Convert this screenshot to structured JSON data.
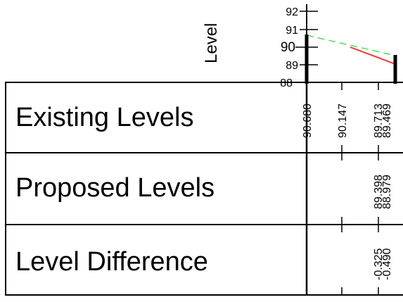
{
  "axis_title": "Level",
  "y_ticks": [
    "92",
    "91",
    "90",
    "89",
    "88"
  ],
  "rows": {
    "existing": "Existing Levels",
    "proposed": "Proposed Levels",
    "difference": "Level Difference"
  },
  "values": {
    "existing": [
      "90.680",
      "90.147",
      "89.713",
      "89.469"
    ],
    "proposed": [
      "89.398",
      "88.979"
    ],
    "difference": [
      "-0.325",
      "-0.490"
    ]
  },
  "colors": {
    "existing_line": "#55dd55",
    "proposed_line": "#ff2a2a",
    "lines": "#000000"
  },
  "chart_data": {
    "type": "line",
    "ylabel": "Level",
    "ylim": [
      88,
      92
    ],
    "series": [
      {
        "name": "",
        "points": [
          [
            0,
            90.68
          ],
          [
            1,
            89.469
          ]
        ]
      },
      {
        "name": "",
        "points": [
          [
            0.5,
            90.0
          ],
          [
            1,
            88.979
          ]
        ]
      }
    ]
  }
}
